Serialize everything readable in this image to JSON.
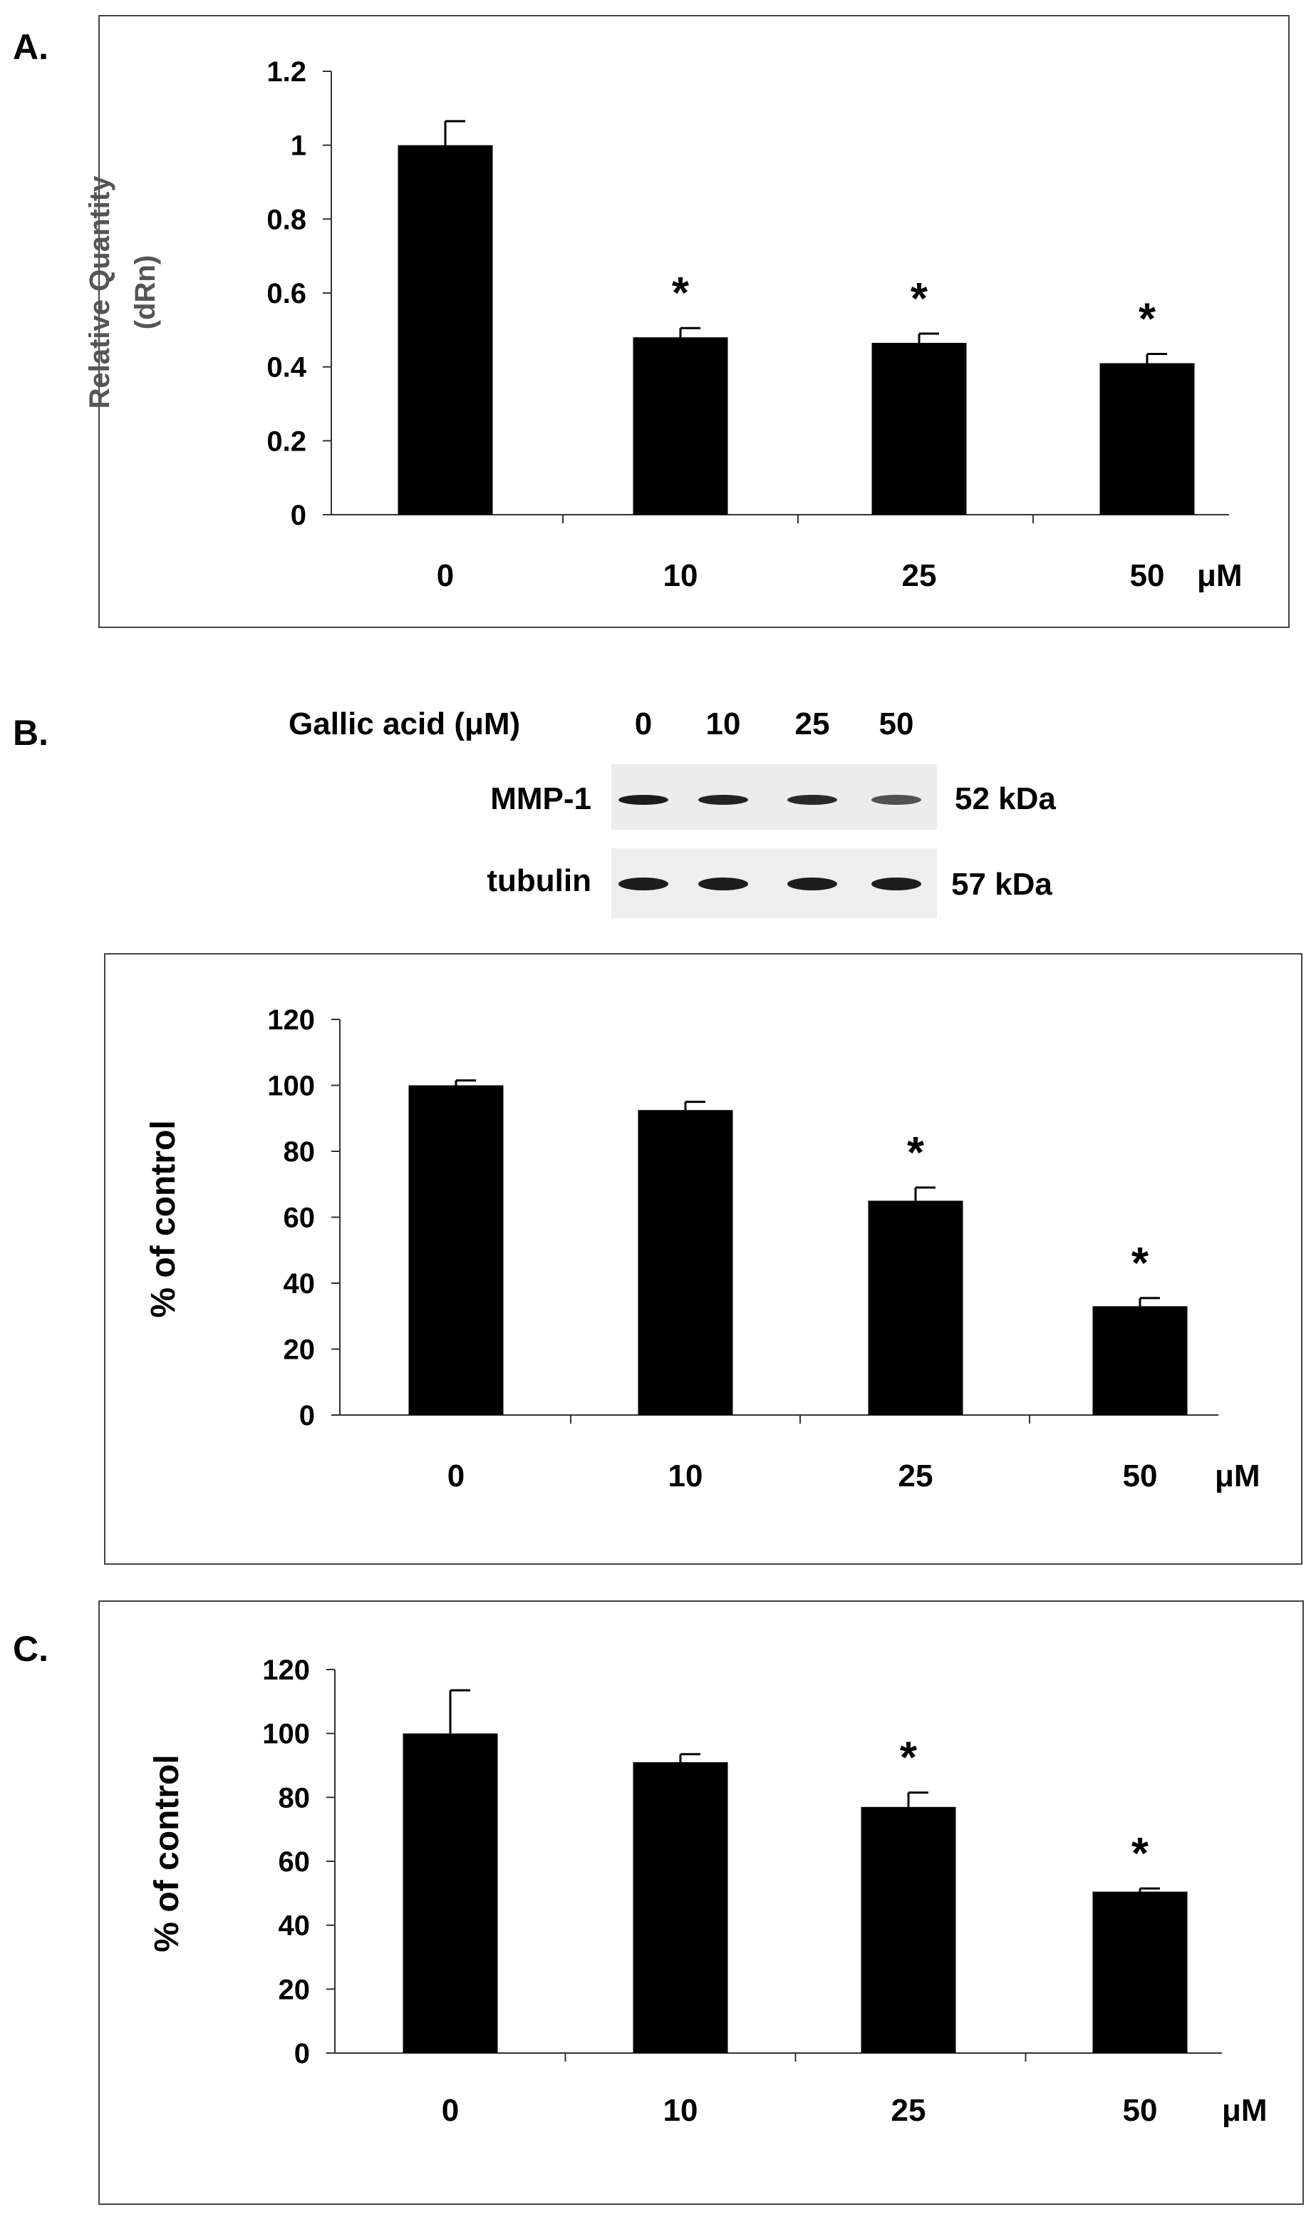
{
  "panel_labels": {
    "a": "A.",
    "b": "B.",
    "c": "C."
  },
  "blot": {
    "header": "Gallic acid (μM)",
    "lanes": [
      "0",
      "10",
      "25",
      "50"
    ],
    "rows": [
      {
        "label": "MMP-1",
        "size": "52 kDa",
        "band_intensity": [
          1.0,
          0.95,
          0.9,
          0.6
        ]
      },
      {
        "label": "tubulin",
        "size": "57 kDa",
        "band_intensity": [
          1.0,
          1.0,
          1.0,
          1.0
        ]
      }
    ]
  },
  "chart_data": [
    {
      "type": "bar",
      "panel": "A",
      "categories": [
        "0",
        "10",
        "25",
        "50"
      ],
      "values": [
        1.0,
        0.48,
        0.465,
        0.41
      ],
      "error": [
        0.065,
        0.025,
        0.025,
        0.025
      ],
      "significant": [
        false,
        true,
        true,
        true
      ],
      "significance_mark": "*",
      "x_unit": "μM",
      "ylabel_lines": [
        "Relative Quantity",
        "(dRn)"
      ],
      "ylim": [
        0,
        1.2
      ],
      "yticks": [
        "0",
        "0.2",
        "0.4",
        "0.6",
        "0.8",
        "1",
        "1.2"
      ],
      "grid": false
    },
    {
      "type": "bar",
      "panel": "B",
      "categories": [
        "0",
        "10",
        "25",
        "50"
      ],
      "values": [
        100,
        92.5,
        65,
        33
      ],
      "error": [
        1.5,
        2.5,
        4,
        2.5
      ],
      "significant": [
        false,
        false,
        true,
        true
      ],
      "significance_mark": "*",
      "x_unit": "μM",
      "ylabel_lines": [
        "% of control"
      ],
      "ylim": [
        0,
        120
      ],
      "yticks": [
        "0",
        "20",
        "40",
        "60",
        "80",
        "100",
        "120"
      ],
      "grid": false
    },
    {
      "type": "bar",
      "panel": "C",
      "categories": [
        "0",
        "10",
        "25",
        "50"
      ],
      "values": [
        100,
        91,
        77,
        50.5
      ],
      "error": [
        13.5,
        2.5,
        4.5,
        1
      ],
      "significant": [
        false,
        false,
        true,
        true
      ],
      "significance_mark": "*",
      "x_unit": "μM",
      "ylabel_lines": [
        "% of control"
      ],
      "ylim": [
        0,
        120
      ],
      "yticks": [
        "0",
        "20",
        "40",
        "60",
        "80",
        "100",
        "120"
      ],
      "grid": false
    }
  ]
}
